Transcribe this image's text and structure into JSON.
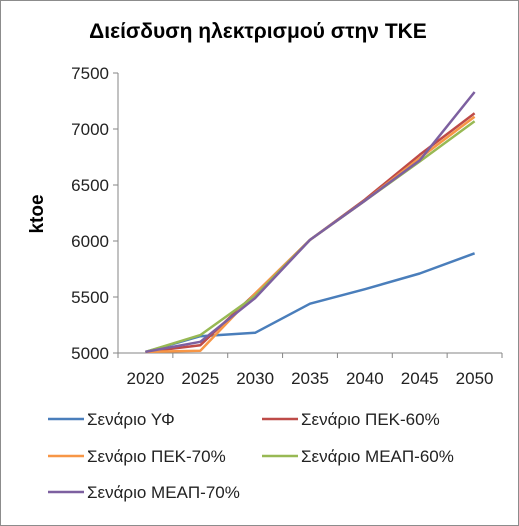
{
  "chart_data": {
    "type": "line",
    "title": "Διείσδυση ηλεκτρισμού στην ΤΚΕ",
    "xlabel": "",
    "ylabel": "ktoe",
    "categories": [
      "2020",
      "2025",
      "2030",
      "2035",
      "2040",
      "2045",
      "2050"
    ],
    "ylim": [
      5000,
      7500
    ],
    "yticks": [
      5000,
      5500,
      6000,
      6500,
      7000,
      7500
    ],
    "grid": false,
    "legend_position": "bottom",
    "series": [
      {
        "name": "Σενάριο ΥΦ",
        "color": "#4a7ebb",
        "values": [
          5010,
          5150,
          5180,
          5440,
          5570,
          5710,
          5890
        ]
      },
      {
        "name": "Σενάριο ΠΕΚ-60%",
        "color": "#be4b48",
        "values": [
          5010,
          5070,
          5530,
          6010,
          6370,
          6770,
          7140
        ]
      },
      {
        "name": "Σενάριο ΠΕΚ-70%",
        "color": "#f79646",
        "values": [
          5010,
          5020,
          5530,
          6010,
          6360,
          6740,
          7110
        ]
      },
      {
        "name": "Σενάριο ΜΕΑΠ-60%",
        "color": "#98b954",
        "values": [
          5010,
          5160,
          5510,
          6010,
          6360,
          6710,
          7070
        ]
      },
      {
        "name": "Σενάριο ΜΕΑΠ-70%",
        "color": "#7d60a0",
        "values": [
          5010,
          5100,
          5490,
          6010,
          6360,
          6720,
          7330
        ]
      }
    ]
  }
}
